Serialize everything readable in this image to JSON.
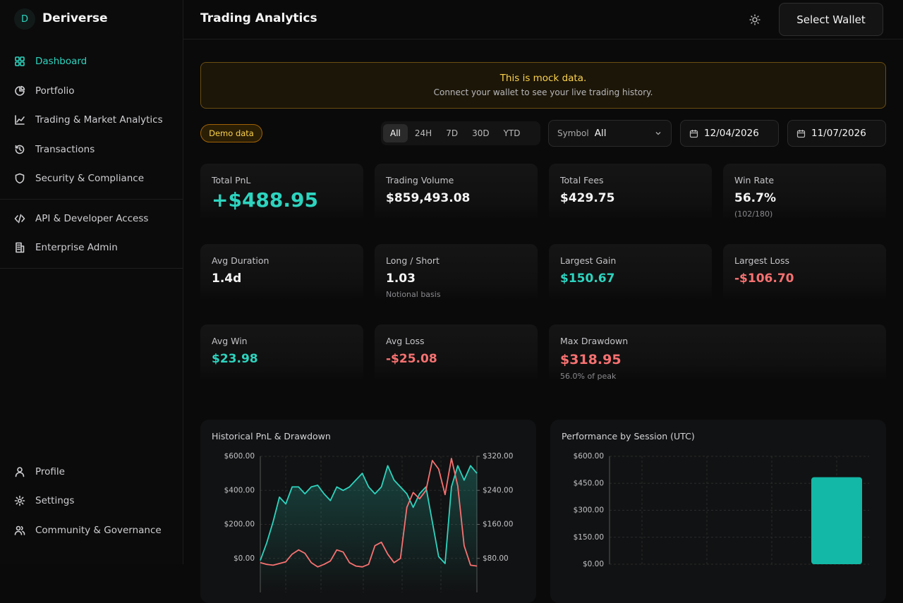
{
  "brand": {
    "logo": "D",
    "name": "Deriverse"
  },
  "nav": {
    "main": [
      "Dashboard",
      "Portfolio",
      "Trading & Market Analytics",
      "Transactions",
      "Security & Compliance"
    ],
    "secondary": [
      "API & Developer Access",
      "Enterprise Admin"
    ],
    "footer": [
      "Profile",
      "Settings",
      "Community & Governance"
    ]
  },
  "header": {
    "title": "Trading Analytics",
    "button": "Select Wallet"
  },
  "banner": {
    "title": "This is mock data.",
    "text": "Connect your wallet to see your live trading history."
  },
  "filters": {
    "badge": "Demo data",
    "ranges": [
      "All",
      "24H",
      "7D",
      "30D",
      "YTD"
    ],
    "symbol_label": "Symbol",
    "symbol_value": "All",
    "dates": [
      "12/04/2026",
      "11/07/2026"
    ]
  },
  "stats": [
    {
      "label": "Total PnL",
      "value": "+$488.95",
      "color": "#2dd4bf"
    },
    {
      "label": "Trading Volume",
      "value": "$859,493.08"
    },
    {
      "label": "Total Fees",
      "value": "$429.75"
    },
    {
      "label": "Win Rate",
      "value": "56.7%",
      "note": "(102/180)"
    },
    {
      "label": "Avg Duration",
      "value": "1.4d"
    },
    {
      "label": "Long / Short",
      "value": "1.03",
      "note": "Notional basis"
    },
    {
      "label": "Largest Gain",
      "value": "$150.67",
      "color": "#2dd4bf"
    },
    {
      "label": "Largest Loss",
      "value": "-$106.70",
      "color": "#f87171"
    },
    {
      "label": "Avg Win",
      "value": "$23.98",
      "color": "#2dd4bf"
    },
    {
      "label": "Avg Loss",
      "value": "-$25.08",
      "color": "#f87171"
    },
    {
      "label": "Max Drawdown",
      "value": "$318.95",
      "color": "#f87171",
      "note": "56.0% of peak"
    }
  ],
  "chart_data": [
    {
      "type": "line",
      "title": "Historical PnL & Drawdown",
      "ylim": [
        -200,
        600
      ],
      "yticks": [
        {
          "value": 600,
          "label": "$600.00"
        },
        {
          "value": 400,
          "label": "$400.00"
        },
        {
          "value": 200,
          "label": "$200.00"
        },
        {
          "value": 0,
          "label": "$0.00"
        }
      ],
      "y2lim": [
        0,
        320
      ],
      "y2ticks": [
        {
          "value": 320,
          "label": "$320.00"
        },
        {
          "value": 240,
          "label": "$240.00"
        },
        {
          "value": 160,
          "label": "$160.00"
        },
        {
          "value": 80,
          "label": "$80.00"
        }
      ],
      "grid": true,
      "series": [
        {
          "color": "#2dd4bf",
          "values": [
            -12,
            90,
            215,
            360,
            320,
            420,
            420,
            380,
            420,
            430,
            380,
            340,
            420,
            400,
            420,
            460,
            500,
            420,
            380,
            420,
            545,
            460,
            420,
            380,
            300,
            380,
            420,
            215,
            10,
            -30,
            420,
            545,
            460,
            545,
            500
          ]
        },
        {
          "color": "#f87171",
          "axis": "y2",
          "values": [
            70,
            66,
            64,
            68,
            72,
            90,
            100,
            92,
            70,
            60,
            66,
            74,
            100,
            95,
            70,
            62,
            60,
            66,
            110,
            118,
            90,
            70,
            80,
            200,
            235,
            220,
            240,
            310,
            290,
            230,
            315,
            250,
            110,
            64,
            62
          ]
        }
      ]
    },
    {
      "type": "bar",
      "title": "Performance by Session (UTC)",
      "categories": [
        null,
        null,
        null,
        null
      ],
      "values": [
        0,
        0,
        0,
        484
      ],
      "color": "#14b8a6",
      "ylim": [
        0,
        600
      ],
      "yticks": [
        {
          "value": 600,
          "label": "$600.00"
        },
        {
          "value": 450,
          "label": "$450.00"
        },
        {
          "value": 300,
          "label": "$300.00"
        },
        {
          "value": 150,
          "label": "$150.00"
        },
        {
          "value": 0,
          "label": "$0.00"
        }
      ],
      "grid": true
    }
  ]
}
